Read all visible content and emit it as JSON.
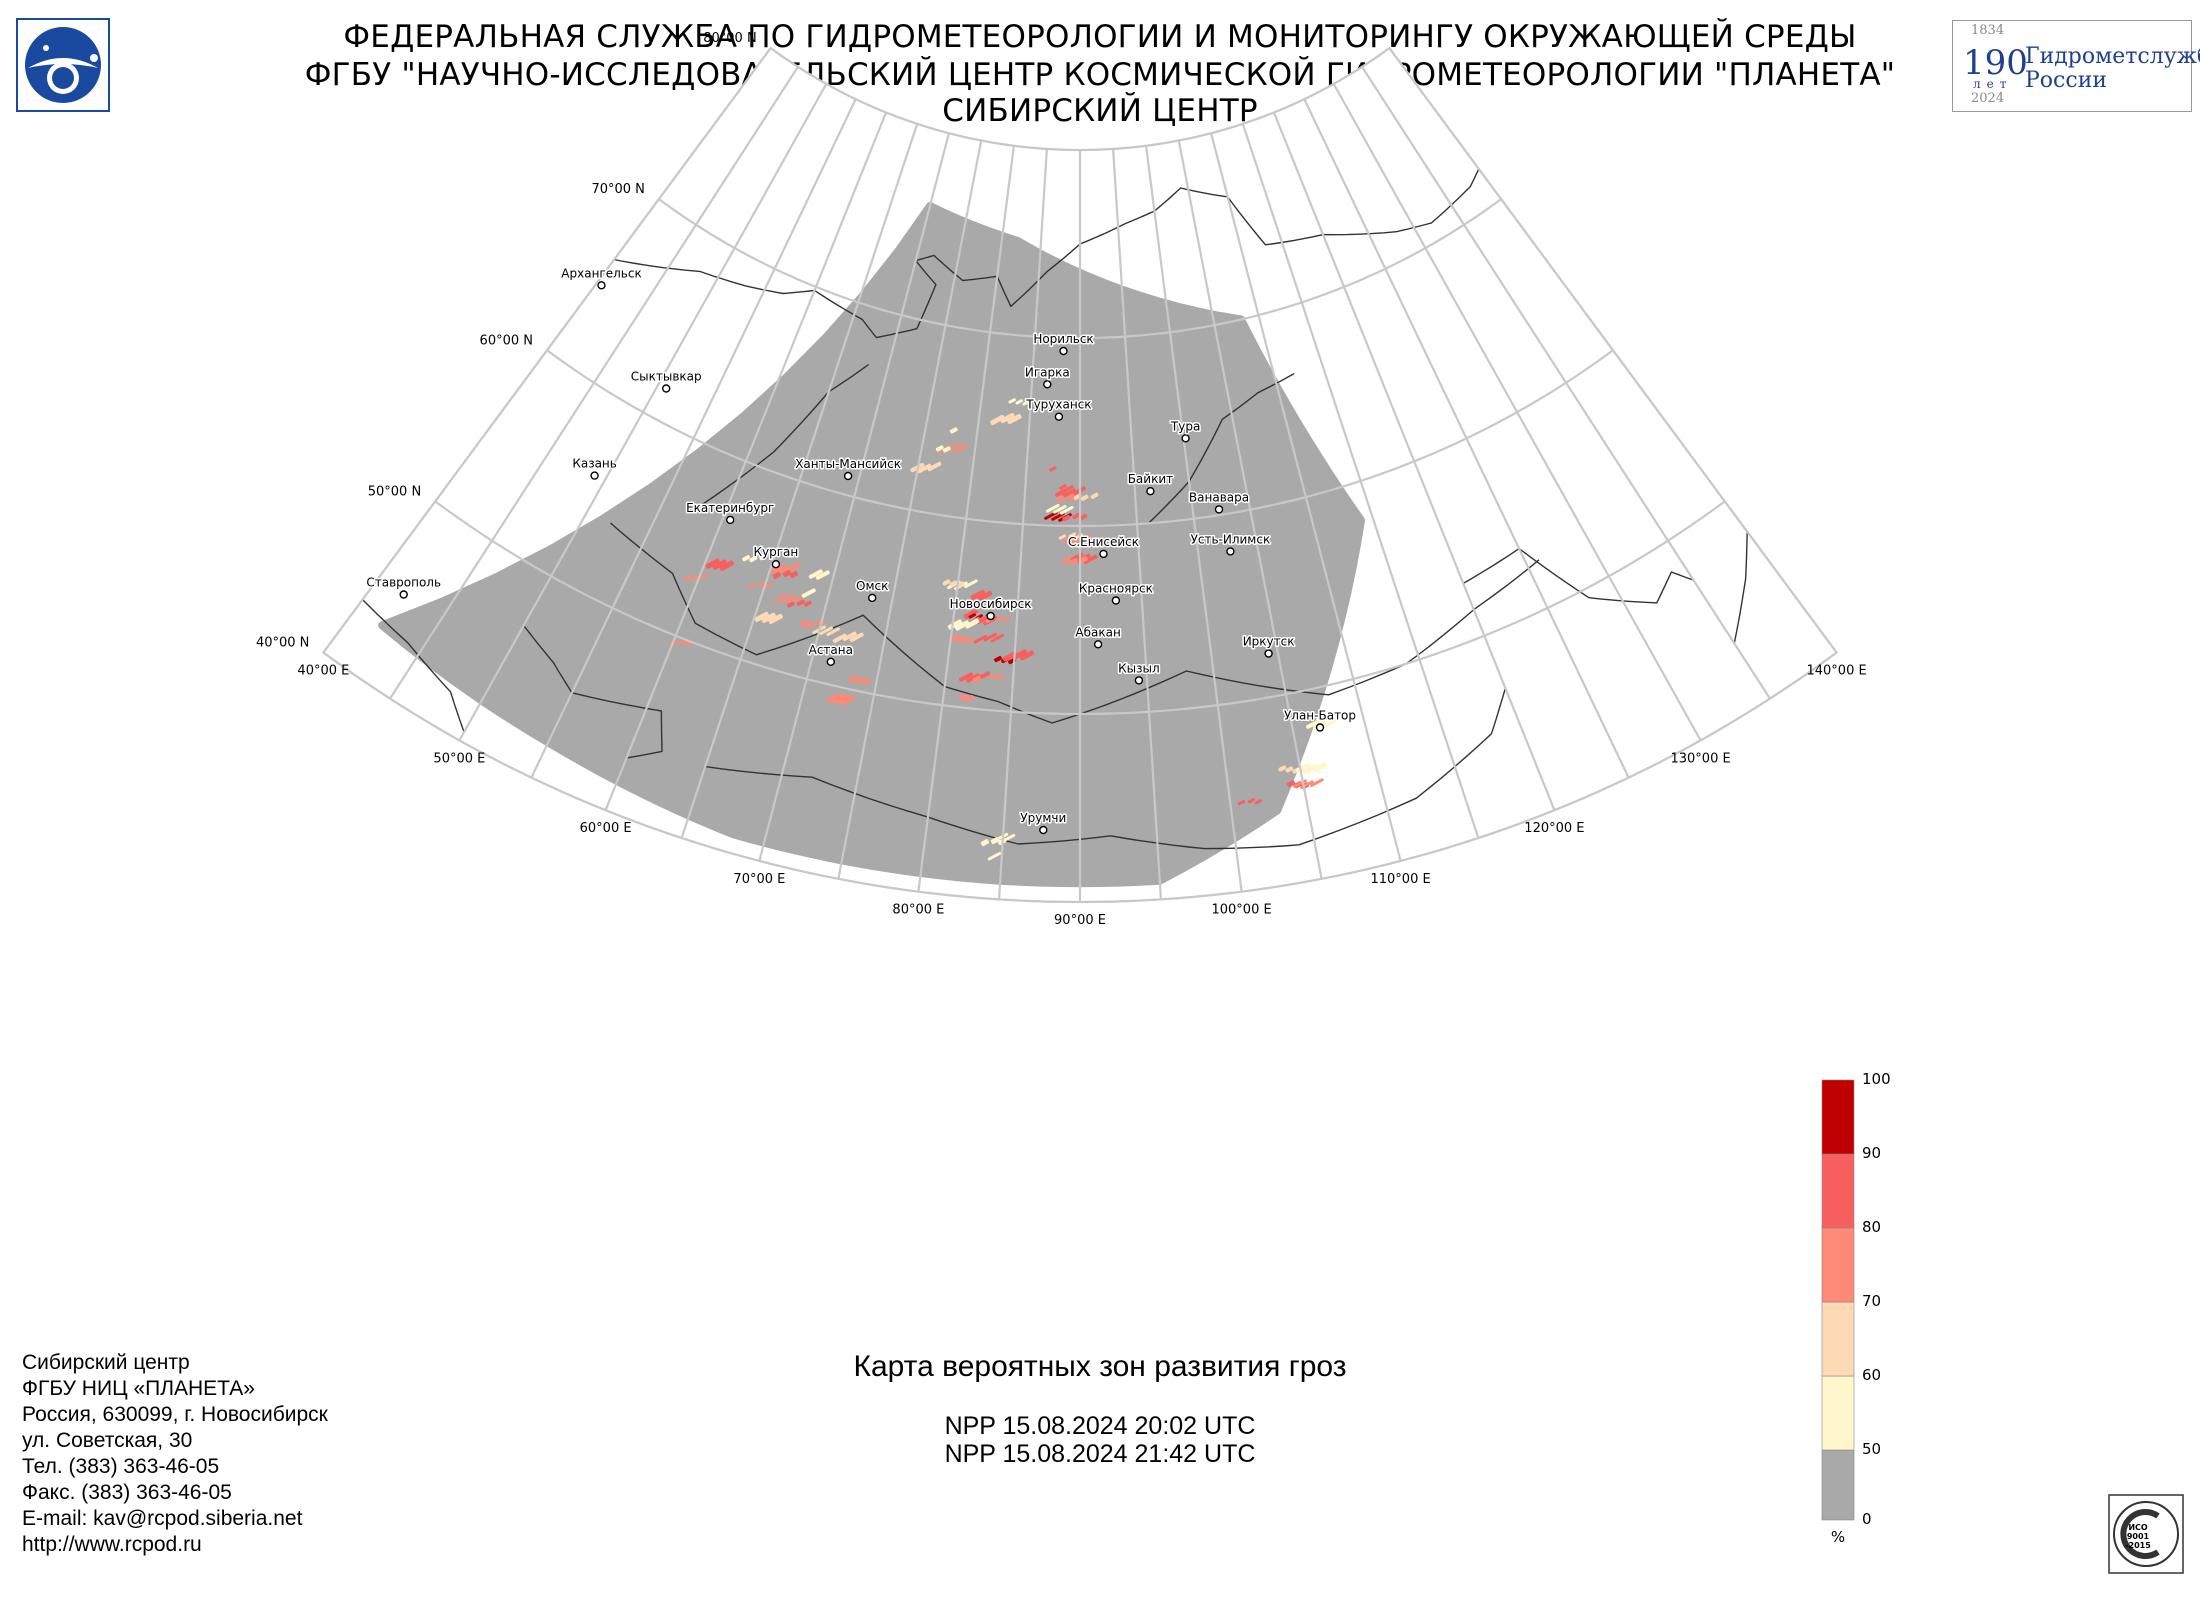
{
  "header": {
    "line1": "ФЕДЕРАЛЬНАЯ СЛУЖБА ПО ГИДРОМЕТЕОРОЛОГИИ И МОНИТОРИНГУ ОКРУЖАЮЩЕЙ СРЕДЫ",
    "line2": "ФГБУ \"НАУЧНО-ИССЛЕДОВАТЕЛЬСКИЙ ЦЕНТР КОСМИЧЕСКОЙ ГИДРОМЕТЕОРОЛОГИИ \"ПЛАНЕТА\"",
    "line3": "СИБИРСКИЙ ЦЕНТР"
  },
  "anniversary_badge": {
    "year_start": "1834",
    "big_number": "190",
    "years_word": "лет",
    "year_end": "2024",
    "text_line1": "Гидрометслужбе",
    "text_line2": "России",
    "color": "#1f3f8f"
  },
  "map": {
    "latitude_labels": [
      "80°00 N",
      "70°00 N",
      "60°00 N",
      "50°00 N",
      "40°00 N"
    ],
    "longitude_labels": [
      "40°00 E",
      "50°00 E",
      "60°00 E",
      "70°00 E",
      "80°00 E",
      "90°00 E",
      "100°00 E",
      "110°00 E",
      "120°00 E",
      "130°00 E",
      "140°00 E"
    ],
    "cities": [
      "Архангельск",
      "Сыктывкар",
      "Казань",
      "Екатеринбург",
      "Курган",
      "Ставрополь",
      "Ханты-Мансийск",
      "Омск",
      "Астана",
      "Новосибирск",
      "Норильск",
      "Игарка",
      "Туруханск",
      "Тура",
      "Байкит",
      "Ванавара",
      "С.Енисейск",
      "Усть-Илимск",
      "Красноярск",
      "Абакан",
      "Кызыл",
      "Иркутск",
      "Улан-Батор",
      "Урумчи"
    ],
    "colors": {
      "swath": "#a9a9a9",
      "grid": "#c8c8c8",
      "coast": "#333333"
    }
  },
  "title": "Карта вероятных зон развития гроз",
  "passes": [
    "NPP 15.08.2024  20:02 UTC",
    "NPP 15.08.2024  21:42 UTC"
  ],
  "legend": {
    "unit": "%",
    "ticks": [
      "0",
      "50",
      "60",
      "70",
      "80",
      "90",
      "100"
    ],
    "bins": [
      {
        "range": "0–50",
        "color": "#a9a9a9"
      },
      {
        "range": "50–60",
        "color": "#fff6cc"
      },
      {
        "range": "60–70",
        "color": "#fdd9b5"
      },
      {
        "range": "70–80",
        "color": "#fc8a77"
      },
      {
        "range": "80–90",
        "color": "#f86060"
      },
      {
        "range": "90–100",
        "color": "#c00000"
      }
    ]
  },
  "contacts": [
    "Сибирский центр",
    "ФГБУ НИЦ «ПЛАНЕТА»",
    "Россия, 630099, г. Новосибирск",
    "ул. Советская, 30",
    "Тел. (383) 363-46-05",
    "Факс. (383) 363-46-05",
    "E-mail: kav@rcpod.siberia.net",
    "http://www.rcpod.ru"
  ],
  "iso_stamp": {
    "line1": "ИСО",
    "line2": "9001",
    "line3": "-2015",
    "ring": "ДОБРОСОВЕСТНЫЙ ПОСТАВЩИК"
  }
}
